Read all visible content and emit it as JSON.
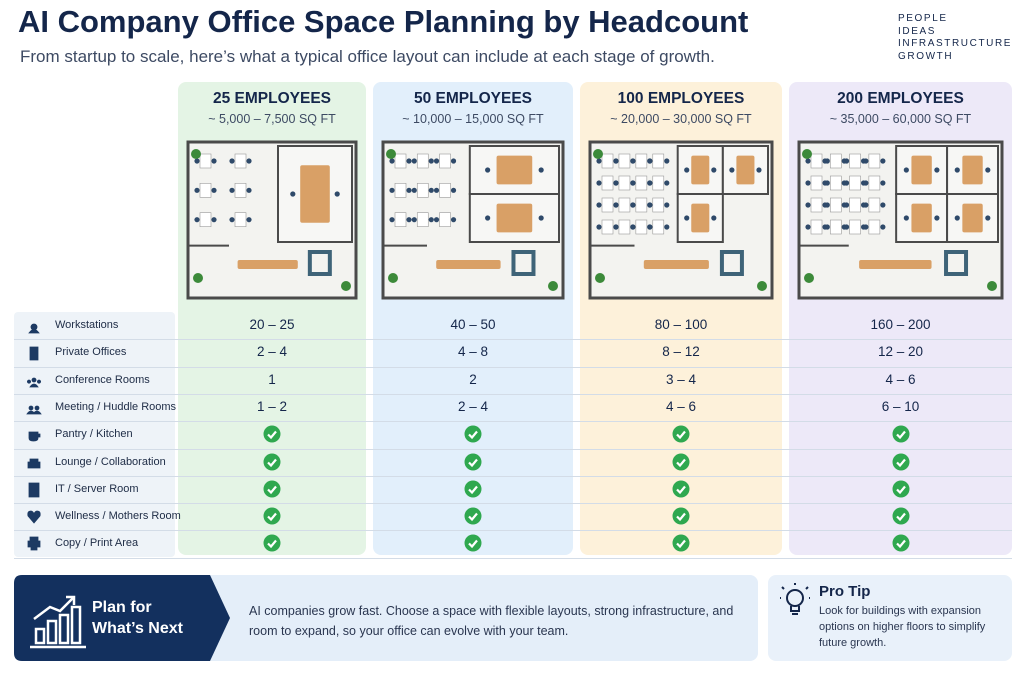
{
  "header": {
    "title": "AI Company Office Space Planning by Headcount",
    "subtitle": "From startup to scale, here’s what a typical office layout can include at each stage of growth.",
    "tagline": [
      "PEOPLE",
      "IDEAS",
      "INFRASTRUCTURE",
      "GROWTH"
    ]
  },
  "table": {
    "columns": [
      {
        "heading": "25 EMPLOYEES",
        "area": "~ 5,000 – 7,500 SQ FT"
      },
      {
        "heading": "50 EMPLOYEES",
        "area": "~ 10,000 – 15,000 SQ FT"
      },
      {
        "heading": "100 EMPLOYEES",
        "area": "~ 20,000 – 30,000 SQ FT"
      },
      {
        "heading": "200 EMPLOYEES",
        "area": "~ 35,000 – 60,000 SQ FT"
      }
    ],
    "rows": [
      {
        "label": "Workstations",
        "values": [
          "20 – 25",
          "40 – 50",
          "80 – 100",
          "160 – 200"
        ]
      },
      {
        "label": "Private Offices",
        "values": [
          "2 – 4",
          "4 – 8",
          "8 – 12",
          "12 – 20"
        ]
      },
      {
        "label": "Conference Rooms",
        "values": [
          "1",
          "2",
          "3 – 4",
          "4 – 6"
        ]
      },
      {
        "label": "Meeting / Huddle Rooms",
        "values": [
          "1 – 2",
          "2 – 4",
          "4 – 6",
          "6 – 10"
        ]
      },
      {
        "label": "Pantry / Kitchen",
        "values": [
          true,
          true,
          true,
          true
        ]
      },
      {
        "label": "Lounge / Collaboration",
        "values": [
          true,
          true,
          true,
          true
        ]
      },
      {
        "label": "IT / Server Room",
        "values": [
          true,
          true,
          true,
          true
        ]
      },
      {
        "label": "Wellness / Mothers Room",
        "values": [
          true,
          true,
          true,
          true
        ]
      },
      {
        "label": "Copy / Print Area",
        "values": [
          true,
          true,
          true,
          true
        ]
      }
    ]
  },
  "footer": {
    "plan_title": [
      "Plan for",
      "What’s Next"
    ],
    "plan_text": "AI companies grow fast. Choose a space with flexible layouts, strong infrastructure, and room to expand, so your office can evolve with your team.",
    "tip_title": "Pro Tip",
    "tip_text": "Look for buildings with expansion options on higher floors to simplify future growth."
  }
}
